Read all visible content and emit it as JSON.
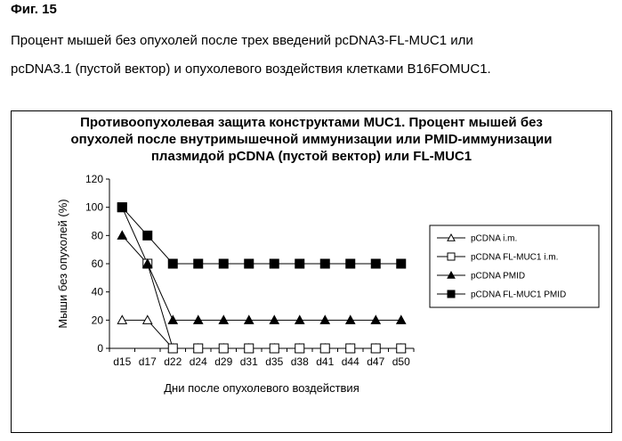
{
  "figure_label": "Фиг. 15",
  "caption": {
    "line1": "Процент мышей без опухолей после трех введений pcDNA3-FL-MUC1 или",
    "line2": "pcDNA3.1 (пустой вектор) и опухолевого воздействия клетками B16FOMUC1."
  },
  "chart_data": {
    "type": "line",
    "title_lines": [
      "Противоопухолевая защита конструктами MUC1. Процент мышей без",
      "опухолей после внутримышечной иммунизации или PMID-иммунизации",
      "плазмидой pCDNA (пустой вектор) или FL-MUC1"
    ],
    "xlabel": "Дни после опухолевого воздействия",
    "ylabel": "Мыши без опухолей (%)",
    "categories": [
      "d15",
      "d17",
      "d22",
      "d24",
      "d29",
      "d31",
      "d35",
      "d38",
      "d41",
      "d44",
      "d47",
      "d50"
    ],
    "yticks": [
      "0",
      "20",
      "40",
      "60",
      "80",
      "100",
      "120"
    ],
    "ylim": [
      0,
      120
    ],
    "grid": false,
    "legend_position": "right",
    "series": [
      {
        "name": "pCDNA i.m.",
        "marker": "triangle-open",
        "values": [
          20,
          20,
          0,
          0,
          0,
          0,
          0,
          0,
          0,
          0,
          0,
          0
        ]
      },
      {
        "name": "pCDNA FL-MUC1 i.m.",
        "marker": "square-open",
        "values": [
          100,
          60,
          0,
          0,
          0,
          0,
          0,
          0,
          0,
          0,
          0,
          0
        ]
      },
      {
        "name": "pCDNA PMID",
        "marker": "triangle-filled",
        "values": [
          80,
          60,
          20,
          20,
          20,
          20,
          20,
          20,
          20,
          20,
          20,
          20
        ]
      },
      {
        "name": "pCDNA FL-MUC1 PMID",
        "marker": "square-filled",
        "values": [
          100,
          80,
          60,
          60,
          60,
          60,
          60,
          60,
          60,
          60,
          60,
          60
        ]
      }
    ]
  }
}
